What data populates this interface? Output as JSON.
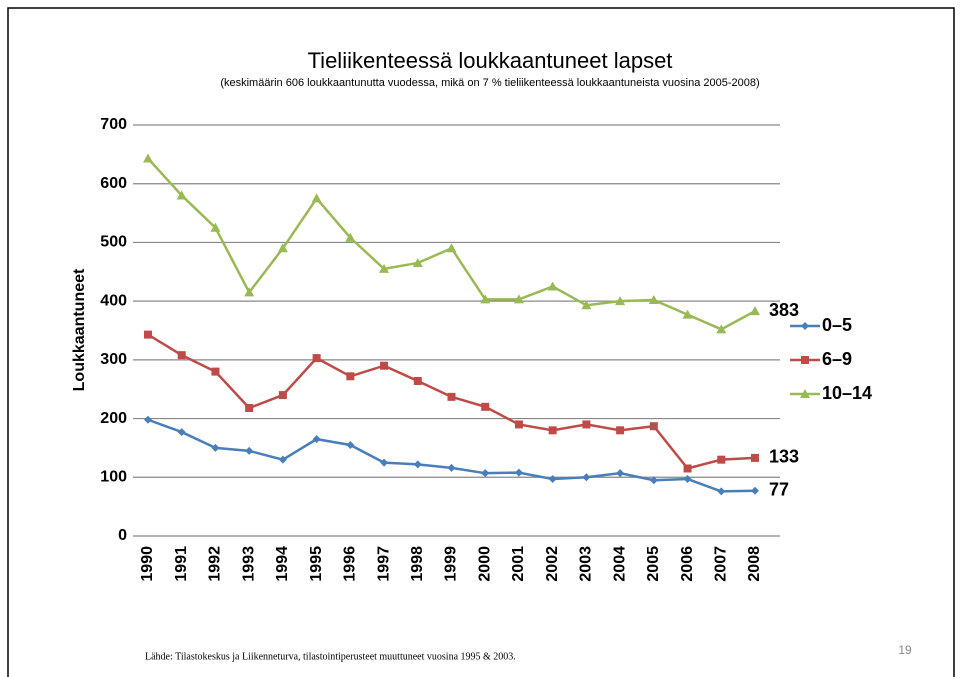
{
  "chart_data": {
    "type": "line",
    "title": "Tieliikenteessä loukkaantuneet lapset",
    "subtitle": "(keskimäärin 606 loukkaantunutta vuodessa, mikä on 7 % tieliikenteessä loukkaantuneista vuosina 2005-2008)",
    "y_label": "Loukkaantuneet",
    "categories": [
      "1990",
      "1991",
      "1992",
      "1993",
      "1994",
      "1995",
      "1996",
      "1997",
      "1998",
      "1999",
      "2000",
      "2001",
      "2002",
      "2003",
      "2004",
      "2005",
      "2006",
      "2007",
      "2008"
    ],
    "series": [
      {
        "name": "0–5",
        "color": "#4a7ebb",
        "marker": "diamond",
        "values": [
          198,
          177,
          150,
          145,
          130,
          165,
          155,
          125,
          122,
          116,
          107,
          108,
          97,
          100,
          107,
          95,
          97,
          76,
          77
        ]
      },
      {
        "name": "6–9",
        "color": "#be4b48",
        "marker": "square",
        "values": [
          343,
          308,
          280,
          218,
          240,
          303,
          272,
          290,
          264,
          237,
          220,
          190,
          180,
          190,
          180,
          187,
          115,
          130,
          133
        ]
      },
      {
        "name": "10–14",
        "color": "#98b954",
        "marker": "triangle",
        "values": [
          643,
          580,
          525,
          415,
          490,
          575,
          508,
          455,
          465,
          490,
          403,
          403,
          425,
          393,
          400,
          402,
          377,
          352,
          383
        ]
      }
    ],
    "ylim": [
      0,
      700
    ],
    "yticks": [
      0,
      100,
      200,
      300,
      400,
      500,
      600,
      700
    ],
    "grid": true,
    "legend": "right"
  },
  "footer": {
    "source": "Lähde: Tilastokeskus ja Liikenneturva, tilastointiperusteet muuttuneet vuosina 1995 & 2003.",
    "page_number": "19"
  }
}
